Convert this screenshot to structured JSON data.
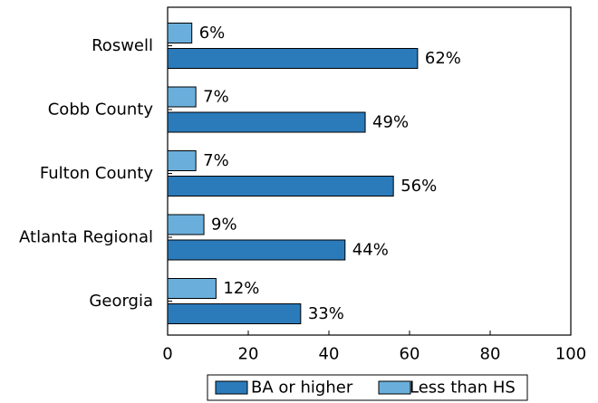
{
  "chart_data": {
    "type": "bar",
    "orientation": "horizontal",
    "categories": [
      "Roswell",
      "Cobb County",
      "Fulton County",
      "Atlanta Regional",
      "Georgia"
    ],
    "series": [
      {
        "name": "Less than HS",
        "values": [
          6,
          7,
          7,
          9,
          12
        ],
        "labels": [
          "6%",
          "7%",
          "7%",
          "9%",
          "12%"
        ],
        "color": "#6aafdc"
      },
      {
        "name": "BA or higher",
        "values": [
          62,
          49,
          56,
          44,
          33
        ],
        "labels": [
          "62%",
          "49%",
          "56%",
          "44%",
          "33%"
        ],
        "color": "#2b7bbb"
      }
    ],
    "title": "",
    "xlabel": "",
    "ylabel": "",
    "xlim": [
      0,
      100
    ],
    "xticks": [
      0,
      20,
      40,
      60,
      80,
      100
    ],
    "xtick_labels": [
      "0",
      "20",
      "40",
      "60",
      "80",
      "100"
    ],
    "grid": false,
    "legend_placement": "bottom-center",
    "legend": [
      {
        "name": "BA or higher",
        "color": "#2b7bbb"
      },
      {
        "name": "Less than HS",
        "color": "#6aafdc"
      }
    ]
  }
}
